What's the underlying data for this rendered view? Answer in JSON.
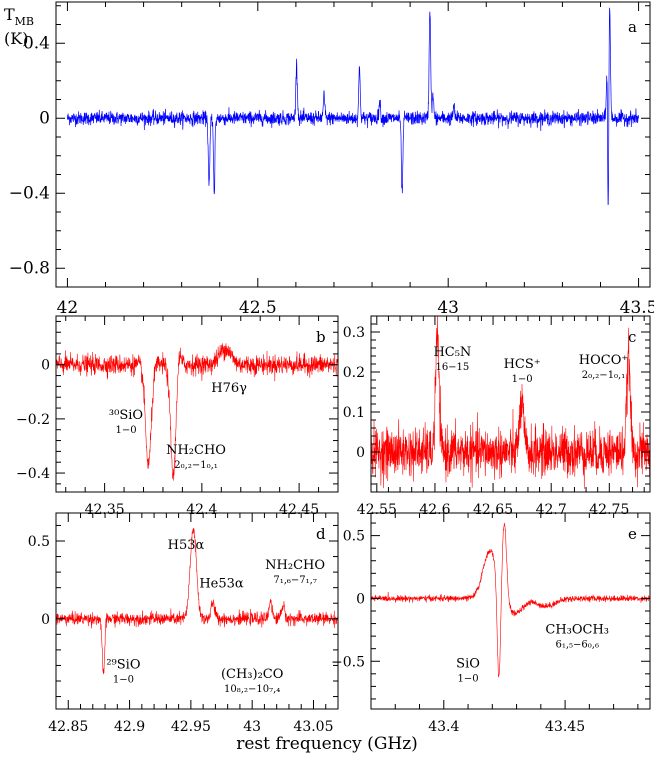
{
  "figure": {
    "xlabel": "rest frequency (GHz)"
  },
  "chart_data": [
    {
      "panel": "a",
      "type": "line",
      "ylabel_line1": "T",
      "ylabel_sub": "MB",
      "ylabel_line2": "(K)",
      "xlim": [
        41.97,
        43.53
      ],
      "ylim": [
        -0.9,
        0.62
      ],
      "xticks": [
        42,
        42.5,
        43,
        43.5
      ],
      "xtick_labels": [
        "42",
        "42.5",
        "43",
        "43.5"
      ],
      "yticks": [
        -0.8,
        -0.4,
        0,
        0.4
      ],
      "ytick_labels": [
        "−0.8",
        "−0.4",
        "0",
        "0.4"
      ],
      "color": "#0000ff",
      "x_range": [
        42.0,
        43.5
      ],
      "noise": 0.018,
      "features": [
        {
          "x": 42.372,
          "y": -0.37,
          "w": 0.002
        },
        {
          "x": 42.386,
          "y": -0.44,
          "w": 0.002
        },
        {
          "x": 42.388,
          "y": 0.14,
          "w": 0.001
        },
        {
          "x": 42.602,
          "y": 0.29,
          "w": 0.002
        },
        {
          "x": 42.674,
          "y": 0.12,
          "w": 0.002
        },
        {
          "x": 42.767,
          "y": 0.26,
          "w": 0.002
        },
        {
          "x": 42.82,
          "y": 0.09,
          "w": 0.002
        },
        {
          "x": 42.879,
          "y": -0.4,
          "w": 0.002
        },
        {
          "x": 42.952,
          "y": 0.58,
          "w": 0.002
        },
        {
          "x": 42.96,
          "y": 0.12,
          "w": 0.002
        },
        {
          "x": 43.015,
          "y": 0.06,
          "w": 0.002
        },
        {
          "x": 43.418,
          "y": 0.38,
          "w": 0.002
        },
        {
          "x": 43.42,
          "y": -0.8,
          "w": 0.0015
        },
        {
          "x": 43.424,
          "y": 0.6,
          "w": 0.002
        }
      ]
    },
    {
      "panel": "b",
      "type": "line",
      "xlim": [
        42.325,
        42.47
      ],
      "ylim": [
        -0.47,
        0.18
      ],
      "xticks": [
        42.35,
        42.4,
        42.45
      ],
      "xtick_labels": [
        "42.35",
        "42.4",
        "42.45"
      ],
      "yticks": [
        -0.4,
        -0.2,
        0
      ],
      "ytick_labels": [
        "−0.4",
        "−0.2",
        "0"
      ],
      "color": "#ff0000",
      "x_range": [
        42.325,
        42.47
      ],
      "noise": 0.018,
      "features": [
        {
          "x": 42.3725,
          "y": -0.37,
          "w": 0.0015
        },
        {
          "x": 42.3855,
          "y": -0.44,
          "w": 0.0015
        },
        {
          "x": 42.3875,
          "y": 0.12,
          "w": 0.0012
        },
        {
          "x": 42.412,
          "y": 0.06,
          "w": 0.003
        }
      ],
      "annotations": [
        {
          "main": "³⁰SiO",
          "sub": "1−0",
          "x": 42.361,
          "y": -0.2
        },
        {
          "main": "NH₂CHO",
          "sub": "2₀,₂−1₀,₁",
          "x": 42.397,
          "y": -0.33
        },
        {
          "main": "H76γ",
          "sub": "",
          "x": 42.414,
          "y": -0.1
        }
      ]
    },
    {
      "panel": "c",
      "type": "line",
      "xlim": [
        42.545,
        42.785
      ],
      "ylim": [
        -0.1,
        0.34
      ],
      "xticks": [
        42.55,
        42.6,
        42.65,
        42.7,
        42.75
      ],
      "xtick_labels": [
        "42.55",
        "42.6",
        "42.65",
        "42.7",
        "42.75"
      ],
      "yticks": [
        0,
        0.1,
        0.2,
        0.3
      ],
      "ytick_labels": [
        "0",
        "0.1",
        "0.2",
        "0.3"
      ],
      "color": "#ff0000",
      "x_range": [
        42.545,
        42.785
      ],
      "noise": 0.03,
      "features": [
        {
          "x": 42.602,
          "y": 0.29,
          "w": 0.0015
        },
        {
          "x": 42.6745,
          "y": 0.12,
          "w": 0.0018
        },
        {
          "x": 42.7665,
          "y": 0.24,
          "w": 0.0015
        }
      ],
      "annotations": [
        {
          "main": "HC₅N",
          "sub": "16−15",
          "x": 42.615,
          "y": 0.24
        },
        {
          "main": "HCS⁺",
          "sub": "1−0",
          "x": 42.675,
          "y": 0.21
        },
        {
          "main": "HOCO⁺",
          "sub": "2₀,₂−1₀,₁",
          "x": 42.745,
          "y": 0.22
        }
      ]
    },
    {
      "panel": "d",
      "type": "line",
      "xlim": [
        42.84,
        43.07
      ],
      "ylim": [
        -0.58,
        0.68
      ],
      "xticks": [
        42.85,
        42.9,
        42.95,
        43,
        43.05
      ],
      "xtick_labels": [
        "42.85",
        "42.9",
        "42.95",
        "43",
        "43.05"
      ],
      "yticks": [
        0,
        0.5
      ],
      "ytick_labels": [
        "0",
        "0.5"
      ],
      "color": "#ff0000",
      "x_range": [
        42.84,
        43.07
      ],
      "noise": 0.02,
      "features": [
        {
          "x": 42.879,
          "y": -0.42,
          "w": 0.0012
        },
        {
          "x": 42.88,
          "y": 0.14,
          "w": 0.001
        },
        {
          "x": 42.952,
          "y": 0.58,
          "w": 0.0025
        },
        {
          "x": 42.968,
          "y": 0.1,
          "w": 0.0015
        },
        {
          "x": 43.015,
          "y": 0.12,
          "w": 0.0012
        },
        {
          "x": 43.025,
          "y": 0.08,
          "w": 0.0015
        }
      ],
      "annotations": [
        {
          "main": "H53α",
          "sub": "",
          "x": 42.946,
          "y": 0.45
        },
        {
          "main": "He53α",
          "sub": "",
          "x": 42.975,
          "y": 0.2
        },
        {
          "main": "NH₂CHO",
          "sub": "7₁,₆−7₁,₇",
          "x": 43.035,
          "y": 0.32
        },
        {
          "main": "²⁹SiO",
          "sub": "1−0",
          "x": 42.895,
          "y": -0.32
        },
        {
          "main": "(CH₃)₂CO",
          "sub": "10₈,₂−10₇,₄",
          "x": 43.0,
          "y": -0.38
        }
      ]
    },
    {
      "panel": "e",
      "type": "line",
      "xlim": [
        43.37,
        43.485
      ],
      "ylim": [
        -0.88,
        0.68
      ],
      "xticks": [
        43.4,
        43.45
      ],
      "xtick_labels": [
        "43.4",
        "43.45"
      ],
      "yticks": [
        -0.5,
        0,
        0.5
      ],
      "ytick_labels": [
        "−0.5",
        "0",
        "0.5"
      ],
      "color": "#ff0000",
      "x_range": [
        43.37,
        43.485
      ],
      "noise": 0.012,
      "features": [
        {
          "x": 43.442,
          "y": -0.06,
          "w": 0.004
        }
      ],
      "sio_profile": {
        "center": 43.4235,
        "pos_peak": 0.6,
        "neg_peak": -0.8,
        "shoulder": 0.38
      },
      "annotations": [
        {
          "main": "SiO",
          "sub": "1−0",
          "x": 43.41,
          "y": -0.55
        },
        {
          "main": "CH₃OCH₃",
          "sub": "6₁,₅−6₀,₆",
          "x": 43.455,
          "y": -0.28
        }
      ]
    }
  ]
}
